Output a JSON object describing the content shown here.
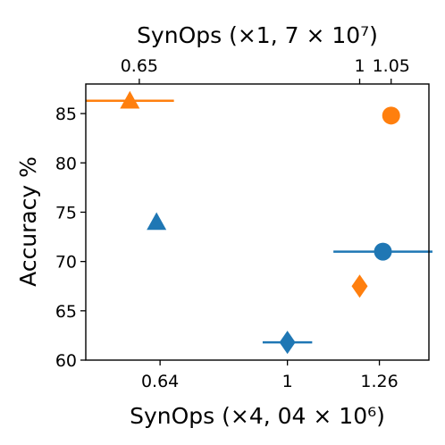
{
  "chart_data": {
    "type": "scatter",
    "title": "",
    "ylabel": "Accuracy %",
    "xlabel_bottom": "SynOps (×4, 04 × 10⁶)",
    "xlabel_top": "SynOps (×1, 7 × 10⁷)",
    "ylim": [
      60,
      88
    ],
    "bottom_axis": {
      "xlim": [
        0.43,
        1.4
      ],
      "ticks": [
        0.64,
        1,
        1.26
      ],
      "tick_labels": [
        "0.64",
        "1",
        "1.26"
      ]
    },
    "top_axis": {
      "xlim": [
        0.565,
        1.11
      ],
      "ticks": [
        0.65,
        1,
        1.05
      ],
      "tick_labels": [
        "0.65",
        "1",
        "1.05"
      ]
    },
    "y_ticks": [
      60,
      65,
      70,
      75,
      80,
      85
    ],
    "y_tick_labels": [
      "60",
      "65",
      "70",
      "75",
      "80",
      "85"
    ],
    "grid": false,
    "legend": "none",
    "colors": {
      "blue": "#1f77b4",
      "orange": "#ff7f0e"
    },
    "series": [
      {
        "color": "blue",
        "axis": "bottom",
        "points": [
          {
            "x": 0.63,
            "y": 74.0,
            "marker": "triangle"
          },
          {
            "x": 1.0,
            "y": 61.8,
            "marker": "diamond",
            "xerr": 0.07
          },
          {
            "x": 1.27,
            "y": 71.0,
            "marker": "circle",
            "xerr": 0.14
          }
        ]
      },
      {
        "color": "orange",
        "axis": "top",
        "points": [
          {
            "x": 0.635,
            "y": 86.3,
            "marker": "triangle",
            "xerr": 0.07
          },
          {
            "x": 1.0,
            "y": 67.5,
            "marker": "diamond"
          },
          {
            "x": 1.05,
            "y": 84.8,
            "marker": "circle"
          }
        ]
      }
    ]
  }
}
